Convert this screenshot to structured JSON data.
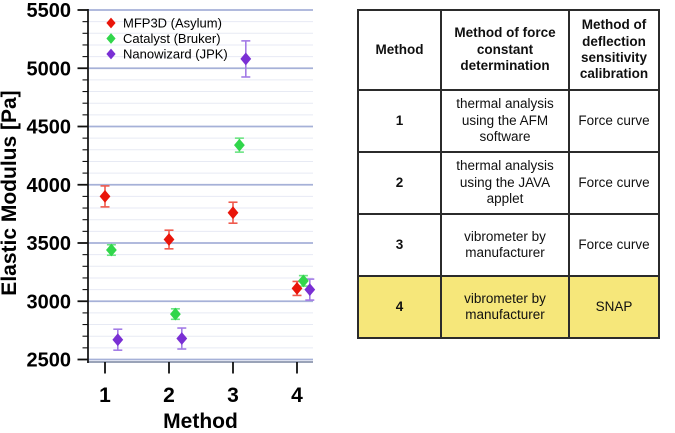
{
  "chart_data": {
    "type": "scatter",
    "title": "",
    "xlabel": "Method",
    "ylabel": "Elastic Modulus [Pa]",
    "xlim": [
      0.73,
      4.27
    ],
    "ylim": [
      2500,
      5500
    ],
    "x_major_ticks": [
      1,
      2,
      3,
      4
    ],
    "y_major_ticks": [
      2500,
      3000,
      3500,
      4000,
      4500,
      5000,
      5500
    ],
    "y_minor_step": 100,
    "grid": "horizontal major and minor gridlines",
    "legend_position": "top-left inside plot",
    "marker": "diamond",
    "series": [
      {
        "name": "MFP3D (Asylum)",
        "color": "#e9150a",
        "error_color": "#ef5a4d",
        "x": [
          1.0,
          2.0,
          3.0,
          4.0
        ],
        "y": [
          3900,
          3530,
          3760,
          3110
        ],
        "yerr": [
          90,
          80,
          90,
          60
        ]
      },
      {
        "name": "Catalyst (Bruker)",
        "color": "#31d64b",
        "error_color": "#6ce383",
        "x": [
          1.1,
          2.1,
          3.1,
          4.1
        ],
        "y": [
          3440,
          2890,
          4340,
          3175
        ],
        "yerr": [
          45,
          45,
          60,
          45
        ]
      },
      {
        "name": "Nanowizard (JPK)",
        "color": "#7a2fd4",
        "error_color": "#a37be6",
        "x": [
          1.2,
          2.2,
          3.2,
          4.2
        ],
        "y": [
          2670,
          2680,
          5080,
          3100
        ],
        "yerr": [
          90,
          90,
          155,
          90
        ]
      }
    ],
    "colors": {
      "major_grid": "#a6b1d8",
      "minor_grid": "#e7eaf4",
      "axis": "#9aa3b8",
      "axis_left": "#1a1a1a",
      "tick": "#111111",
      "text": "#000000"
    }
  },
  "table": {
    "headers": [
      "Method",
      "Method of force constant determination",
      "Method of deflection sensitivity calibration"
    ],
    "rows": [
      {
        "method": "1",
        "force_constant": "thermal analysis using the AFM software",
        "deflection": "Force curve",
        "highlight": false
      },
      {
        "method": "2",
        "force_constant": "thermal analysis using the JAVA applet",
        "deflection": "Force curve",
        "highlight": false
      },
      {
        "method": "3",
        "force_constant": "vibrometer by manufacturer",
        "deflection": "Force curve",
        "highlight": false
      },
      {
        "method": "4",
        "force_constant": "vibrometer by manufacturer",
        "deflection": "SNAP",
        "highlight": true
      }
    ],
    "highlight_color": "#f6e77a"
  }
}
